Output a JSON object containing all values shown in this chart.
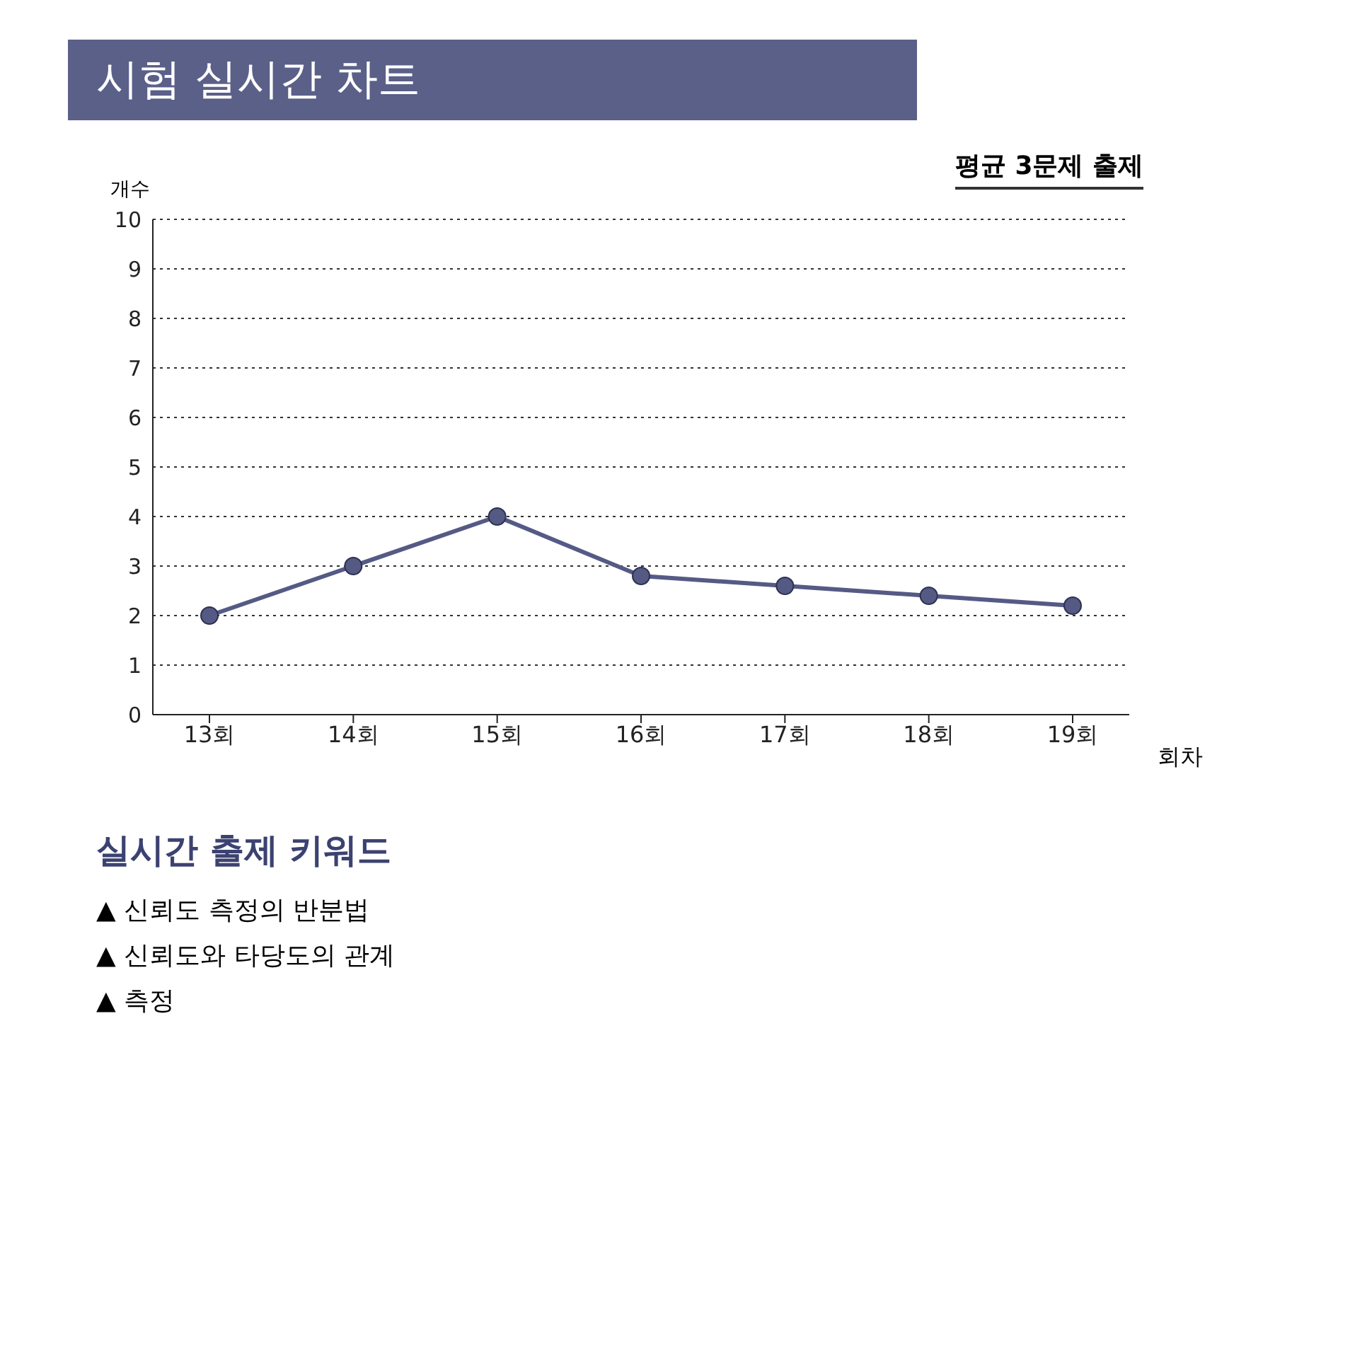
{
  "chart_data": {
    "type": "line",
    "title": "시험 실시간 차트",
    "ylabel": "개수",
    "xlabel": "회차",
    "categories": [
      "13회",
      "14회",
      "15회",
      "16회",
      "17회",
      "18회",
      "19회"
    ],
    "series": [
      {
        "color": "#555a85",
        "values": [
          2,
          3,
          4,
          2.8,
          2.6,
          2.4,
          2.2
        ]
      }
    ],
    "ylim": [
      0,
      10
    ],
    "yticks": [
      0,
      1,
      2,
      3,
      4,
      5,
      6,
      7,
      8,
      9,
      10
    ],
    "grid": "y",
    "marker": "circle",
    "line_style": "solid",
    "legend": false,
    "annotations": [
      "평균 3문제 출제",
      "실시간 출제 키워드",
      "▲ 신뢰도 측정의 반분법",
      "▲ 신뢰도와 타당도의 관계",
      "▲ 측정"
    ]
  }
}
